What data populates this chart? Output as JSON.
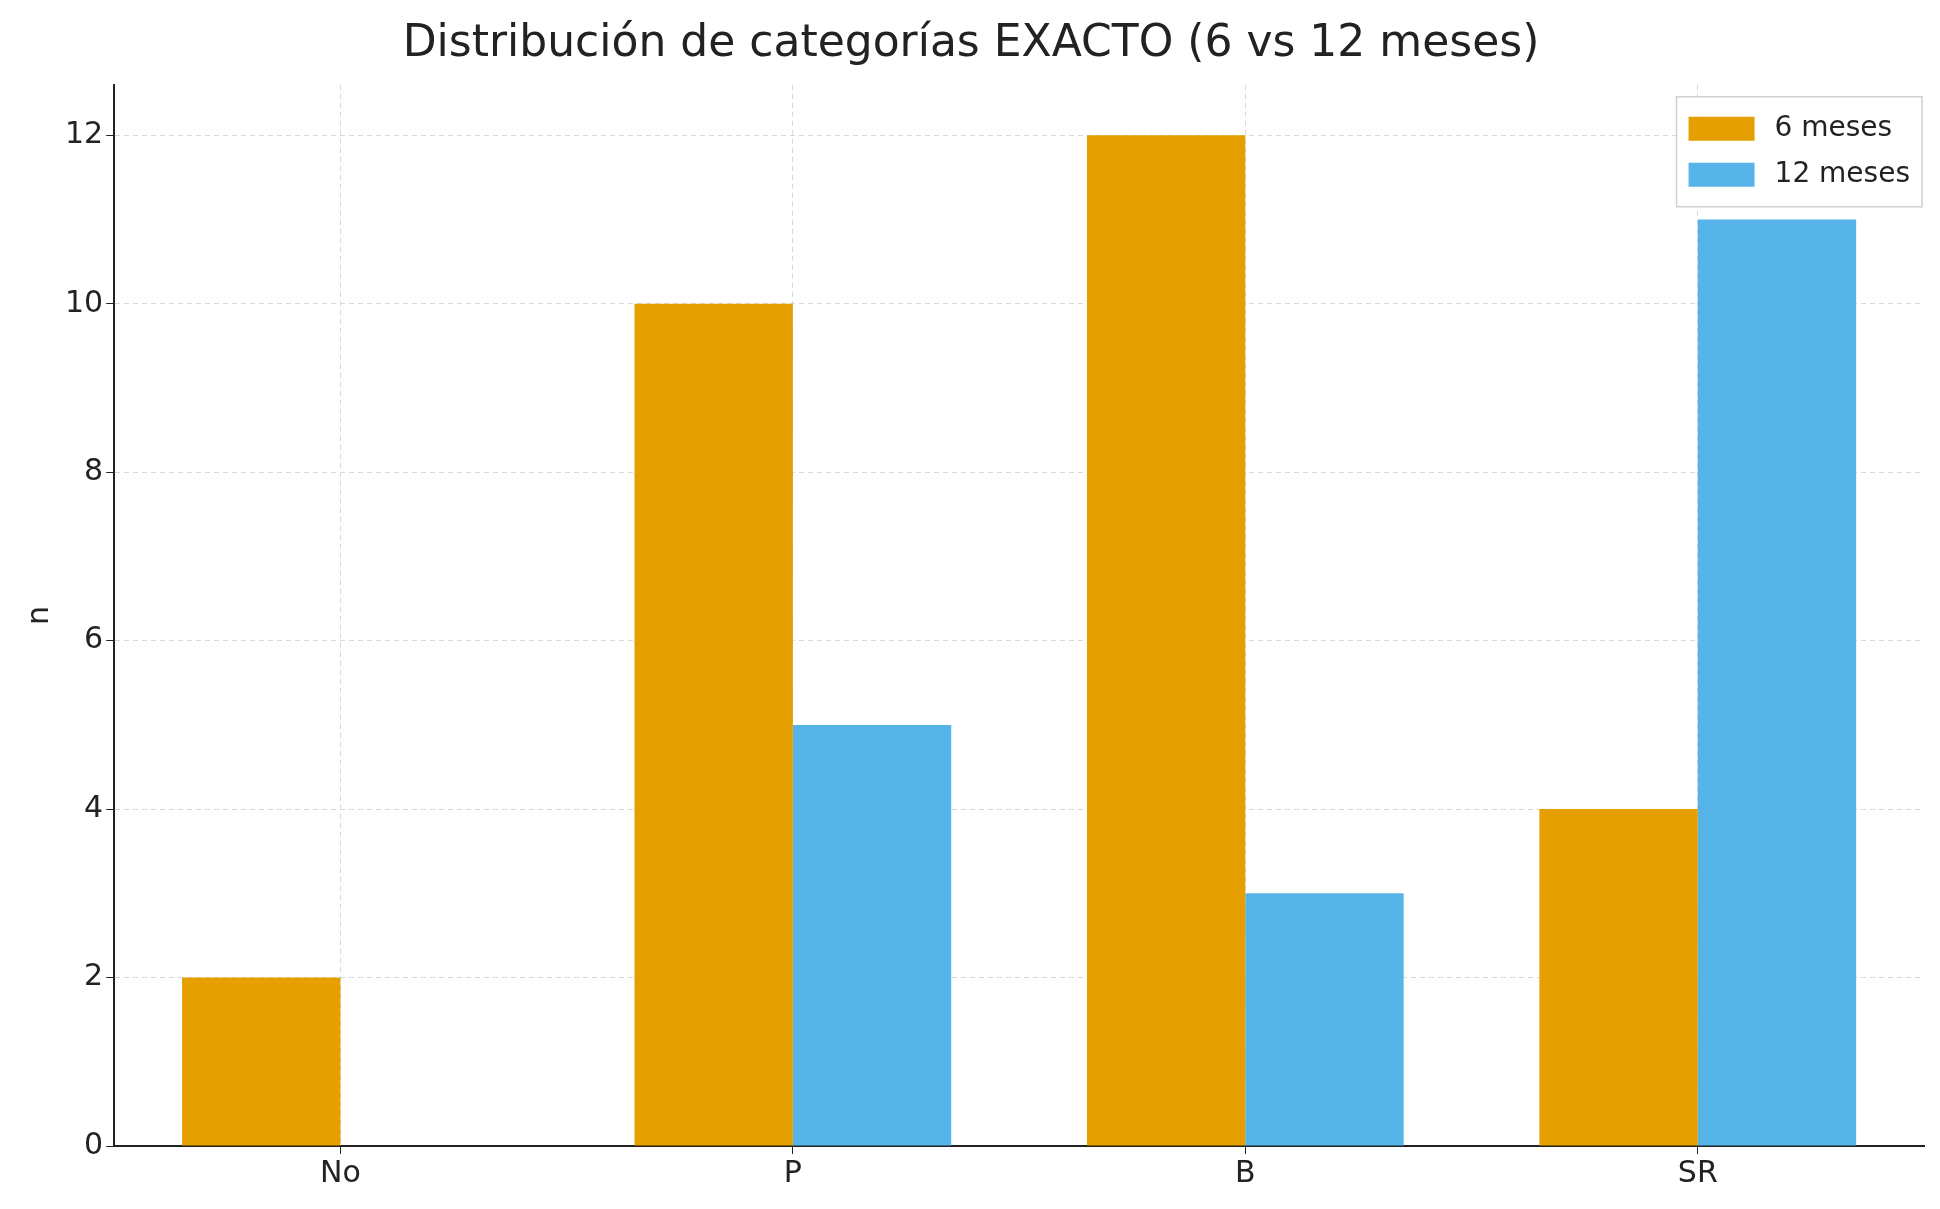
{
  "chart_data": {
    "type": "bar",
    "title": "Distribución de categorías EXACTO (6 vs 12 meses)",
    "ylabel": "n",
    "categories": [
      "No",
      "P",
      "B",
      "SR"
    ],
    "series": [
      {
        "name": "6 meses",
        "color": "#e69f00",
        "values": [
          2,
          10,
          12,
          4
        ]
      },
      {
        "name": "12 meses",
        "color": "#56b4e9",
        "values": [
          0,
          5,
          3,
          11
        ]
      }
    ],
    "ylim": [
      0,
      12.6
    ],
    "yticks": [
      0,
      2,
      4,
      6,
      8,
      10,
      12
    ],
    "grid": true,
    "legend": "top right"
  }
}
